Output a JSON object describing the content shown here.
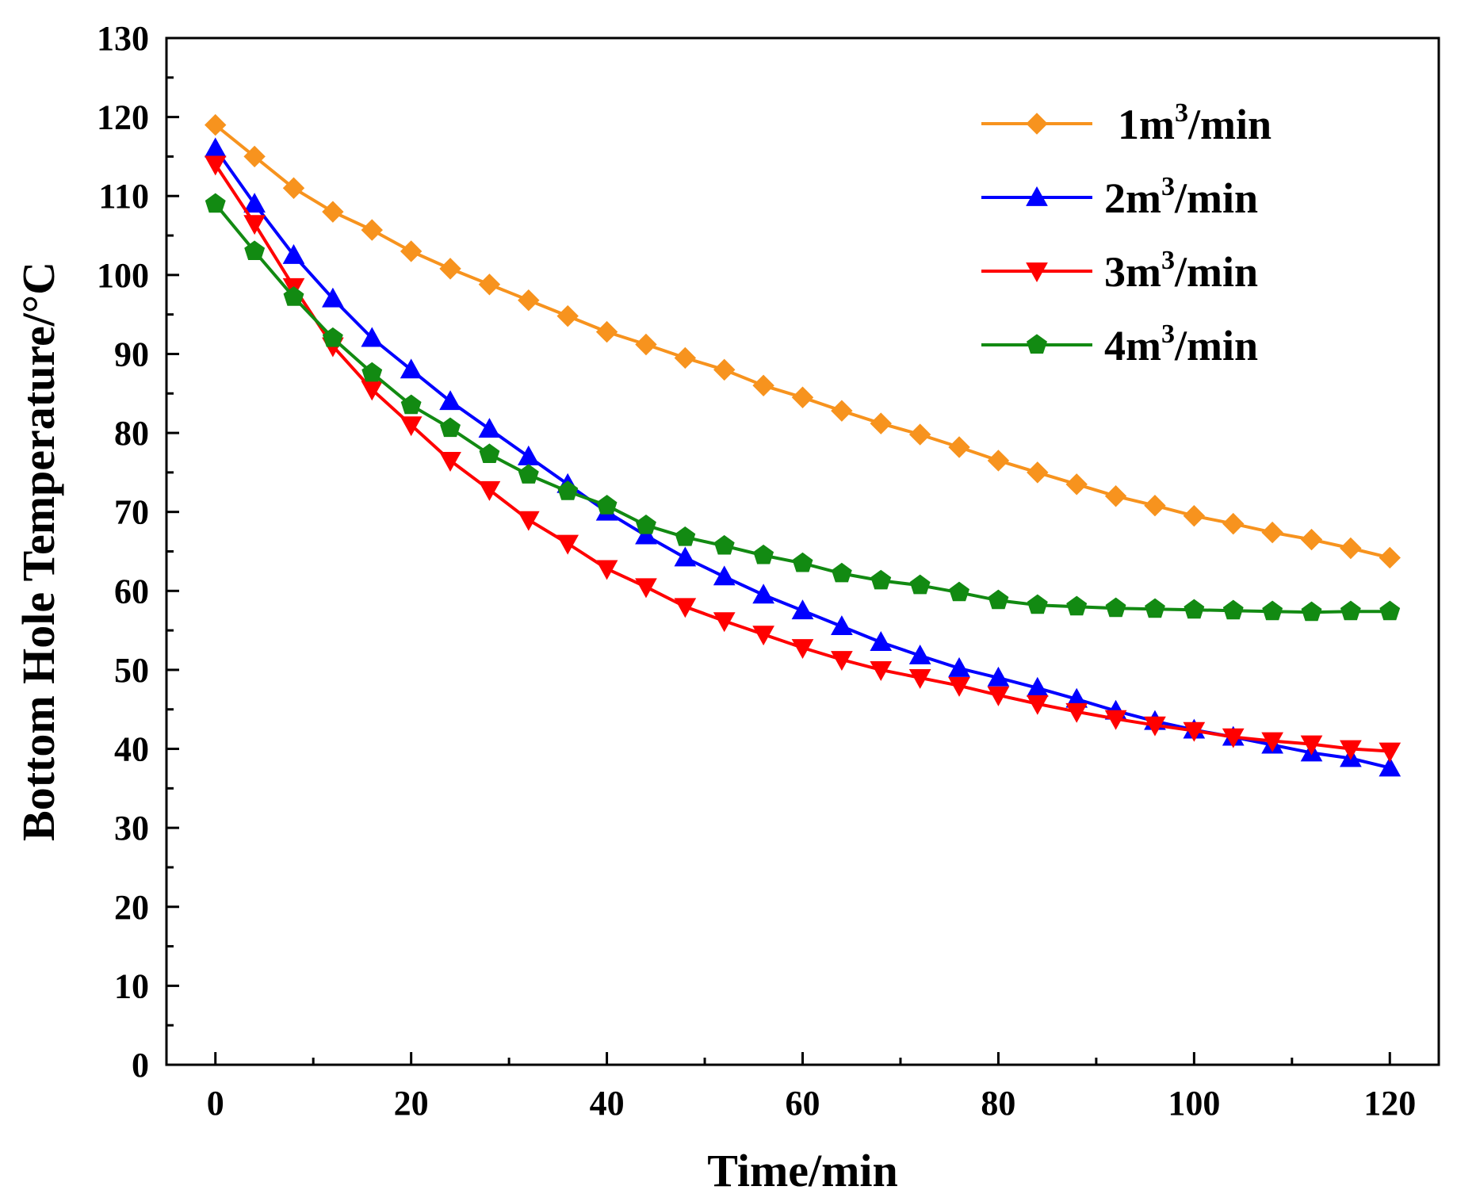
{
  "chart_data": {
    "type": "line",
    "xlabel": "Time/min",
    "ylabel": "Bottom Hole Temperature/°C",
    "xlim": [
      -5,
      125
    ],
    "ylim": [
      0,
      130
    ],
    "x_ticks": [
      0,
      20,
      40,
      60,
      80,
      100,
      120
    ],
    "x_tick_labels": [
      "0",
      "20",
      "40",
      "60",
      "80",
      "100",
      "120"
    ],
    "y_ticks": [
      0,
      10,
      20,
      30,
      40,
      50,
      60,
      70,
      80,
      90,
      100,
      110,
      120,
      130
    ],
    "y_tick_labels": [
      "0",
      "10",
      "20",
      "30",
      "40",
      "50",
      "60",
      "70",
      "80",
      "90",
      "100",
      "110",
      "120",
      "130"
    ],
    "grid": false,
    "legend_position": "top-right",
    "x": [
      0,
      4,
      8,
      12,
      16,
      20,
      24,
      28,
      32,
      36,
      40,
      44,
      48,
      52,
      56,
      60,
      64,
      68,
      72,
      76,
      80,
      84,
      88,
      92,
      96,
      100,
      104,
      108,
      112,
      116,
      120
    ],
    "series": [
      {
        "name_prefix": "1m",
        "name_sup": "3",
        "name_suffix": "/min",
        "color": "#f7931e",
        "marker": "diamond",
        "values": [
          119,
          115,
          111,
          108,
          105.7,
          103,
          100.8,
          98.8,
          96.8,
          94.8,
          92.8,
          91.2,
          89.5,
          88,
          86,
          84.5,
          82.8,
          81.2,
          79.8,
          78.2,
          76.5,
          75,
          73.5,
          72,
          70.8,
          69.5,
          68.5,
          67.4,
          66.5,
          65.4,
          64.2
        ]
      },
      {
        "name_prefix": "2m",
        "name_sup": "3",
        "name_suffix": "/min",
        "color": "#0000ff",
        "marker": "triangle-up",
        "values": [
          116,
          109,
          102.5,
          97,
          92,
          88,
          84,
          80.5,
          77,
          73.5,
          70,
          67,
          64.2,
          61.8,
          59.5,
          57.5,
          55.5,
          53.5,
          51.8,
          50.2,
          49,
          47.7,
          46.3,
          44.8,
          43.5,
          42.4,
          41.5,
          40.5,
          39.5,
          38.8,
          37.6
        ]
      },
      {
        "name_prefix": "3m",
        "name_sup": "3",
        "name_suffix": "/min",
        "color": "#ff0000",
        "marker": "triangle-down",
        "values": [
          114,
          106.5,
          98.5,
          91,
          85.5,
          81,
          76.5,
          72.8,
          69,
          66,
          62.8,
          60.5,
          58,
          56.2,
          54.5,
          52.8,
          51.3,
          50,
          49,
          48,
          46.8,
          45.7,
          44.7,
          43.8,
          43,
          42.3,
          41.5,
          41,
          40.6,
          40,
          39.7
        ]
      },
      {
        "name_prefix": "4m",
        "name_sup": "3",
        "name_suffix": "/min",
        "color": "#128a12",
        "marker": "pentagon",
        "values": [
          109,
          103,
          97.2,
          92,
          87.6,
          83.5,
          80.6,
          77.3,
          74.7,
          72.6,
          70.8,
          68.3,
          66.8,
          65.7,
          64.5,
          63.5,
          62.2,
          61.3,
          60.7,
          59.8,
          58.8,
          58.2,
          58,
          57.8,
          57.7,
          57.6,
          57.5,
          57.4,
          57.3,
          57.4,
          57.4
        ]
      }
    ]
  }
}
